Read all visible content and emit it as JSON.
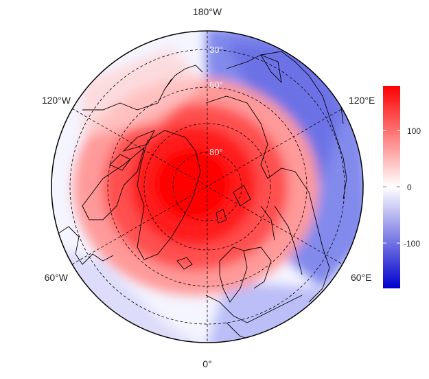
{
  "map": {
    "projection": "north-polar-stereographic",
    "center_lat": 90,
    "min_lat": 30,
    "longitude_labels": {
      "top": "180°W",
      "bottom": "0°",
      "upper_left": "120°W",
      "upper_right": "120°E",
      "lower_left": "60°W",
      "lower_right": "60°E"
    },
    "latitude_labels": [
      "30°",
      "60°",
      "80°"
    ],
    "latitude_circles_deg": [
      30,
      45,
      60,
      75
    ],
    "meridian_lines": "dashed",
    "field": {
      "description_values": "red anomaly centred over Greenland / Arctic, blue over Siberia and North Pacific",
      "positive_color": "#ff0000",
      "zero_color": "#ffffff",
      "negative_color": "#0000cc"
    },
    "colorbar": {
      "ticks": [
        "100",
        "0",
        "-100"
      ],
      "min": -180,
      "max": 180
    },
    "icons": {
      "land": "coastline-outline"
    }
  }
}
